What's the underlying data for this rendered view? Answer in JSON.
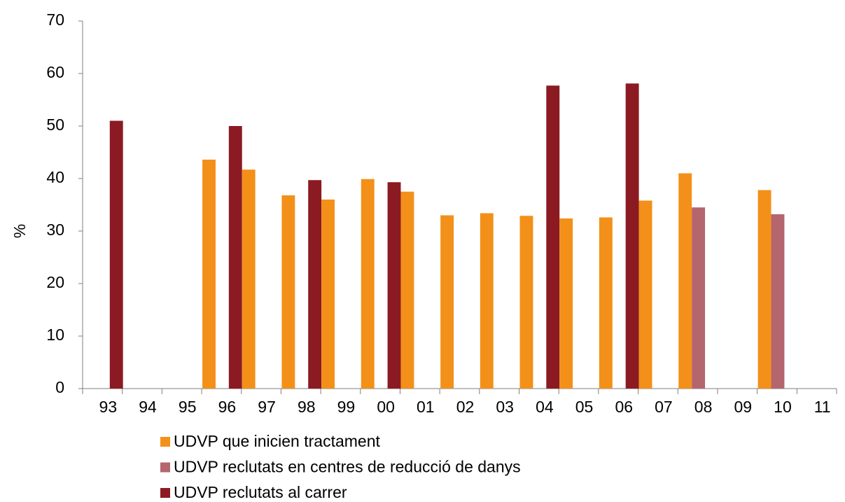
{
  "chart_data": {
    "type": "bar",
    "ylabel": "%",
    "categories": [
      "93",
      "94",
      "95",
      "96",
      "97",
      "98",
      "99",
      "00",
      "01",
      "02",
      "03",
      "04",
      "05",
      "06",
      "07",
      "08",
      "09",
      "10",
      "11"
    ],
    "series": [
      {
        "name": "UDVP que inicien tractament",
        "color": "#f39019",
        "values": [
          null,
          null,
          null,
          43.6,
          41.7,
          36.8,
          36.0,
          39.9,
          37.5,
          33.0,
          33.4,
          32.9,
          32.4,
          32.6,
          35.8,
          41.0,
          null,
          37.8,
          null
        ]
      },
      {
        "name": "UDVP reclutats en centres de reducció de danys",
        "color": "#b5656d",
        "values": [
          null,
          null,
          null,
          null,
          null,
          null,
          null,
          null,
          null,
          null,
          null,
          null,
          null,
          null,
          null,
          34.5,
          null,
          33.2,
          null
        ]
      },
      {
        "name": "UDVP reclutats al carrer",
        "color": "#8b1a22",
        "values": [
          51,
          null,
          null,
          50,
          null,
          39.7,
          null,
          39.3,
          null,
          null,
          null,
          57.7,
          null,
          58.1,
          null,
          null,
          null,
          null,
          null
        ]
      }
    ],
    "ylim": [
      0,
      70
    ],
    "yticks": [
      0,
      10,
      20,
      30,
      40,
      50,
      60,
      70
    ]
  }
}
